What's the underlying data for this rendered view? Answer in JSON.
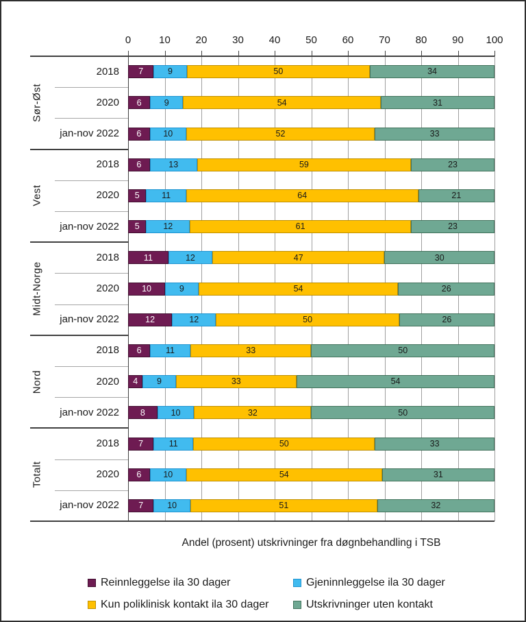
{
  "chart_data": {
    "type": "bar",
    "variant": "horizontal-stacked-100",
    "axis_title": "Andel (prosent)  utskrivninger fra døgnbehandling i TSB",
    "xlim": [
      0,
      100
    ],
    "x_ticks": [
      0,
      10,
      20,
      30,
      40,
      50,
      60,
      70,
      80,
      90,
      100
    ],
    "grid": true,
    "legend_position": "bottom",
    "series": [
      {
        "name": "Reinnleggelse ila 30 dager",
        "fill": "#6E1B52",
        "border": "#400E2F",
        "label_color": "#FFFFFF"
      },
      {
        "name": "Gjeninnleggelse ila 30 dager",
        "fill": "#41BBEF",
        "border": "#1F93D0",
        "label_color": "#1A1A1A"
      },
      {
        "name": "Kun poliklinisk kontakt ila 30 dager",
        "fill": "#FFC000",
        "border": "#BF8F00",
        "label_color": "#1A1A1A"
      },
      {
        "name": "Utskrivninger uten kontakt",
        "fill": "#6FA893",
        "border": "#41725B",
        "label_color": "#1A1A1A"
      }
    ],
    "groups": [
      {
        "region": "Sør-Øst",
        "rows": [
          {
            "period": "2018",
            "values": [
              7,
              9,
              50,
              34
            ]
          },
          {
            "period": "2020",
            "values": [
              6,
              9,
              54,
              31
            ]
          },
          {
            "period": "jan-nov 2022",
            "values": [
              6,
              10,
              52,
              33
            ]
          }
        ]
      },
      {
        "region": "Vest",
        "rows": [
          {
            "period": "2018",
            "values": [
              6,
              13,
              59,
              23
            ]
          },
          {
            "period": "2020",
            "values": [
              5,
              11,
              64,
              21
            ]
          },
          {
            "period": "jan-nov 2022",
            "values": [
              5,
              12,
              61,
              23
            ]
          }
        ]
      },
      {
        "region": "Midt-Norge",
        "rows": [
          {
            "period": "2018",
            "values": [
              11,
              12,
              47,
              30
            ]
          },
          {
            "period": "2020",
            "values": [
              10,
              9,
              54,
              26
            ]
          },
          {
            "period": "jan-nov 2022",
            "values": [
              12,
              12,
              50,
              26
            ]
          }
        ]
      },
      {
        "region": "Nord",
        "rows": [
          {
            "period": "2018",
            "values": [
              6,
              11,
              33,
              50
            ]
          },
          {
            "period": "2020",
            "values": [
              4,
              9,
              33,
              54
            ]
          },
          {
            "period": "jan-nov 2022",
            "values": [
              8,
              10,
              32,
              50
            ]
          }
        ]
      },
      {
        "region": "Totalt",
        "rows": [
          {
            "period": "2018",
            "values": [
              7,
              11,
              50,
              33
            ]
          },
          {
            "period": "2020",
            "values": [
              6,
              10,
              54,
              31
            ]
          },
          {
            "period": "jan-nov 2022",
            "values": [
              7,
              10,
              51,
              32
            ]
          }
        ]
      }
    ],
    "colors": {
      "grid": "#9E9E9E",
      "axis": "#404040",
      "group_divider": "#3F3F3F",
      "minor_divider": "#A6A6A6",
      "text": "#1A1A1A"
    }
  }
}
